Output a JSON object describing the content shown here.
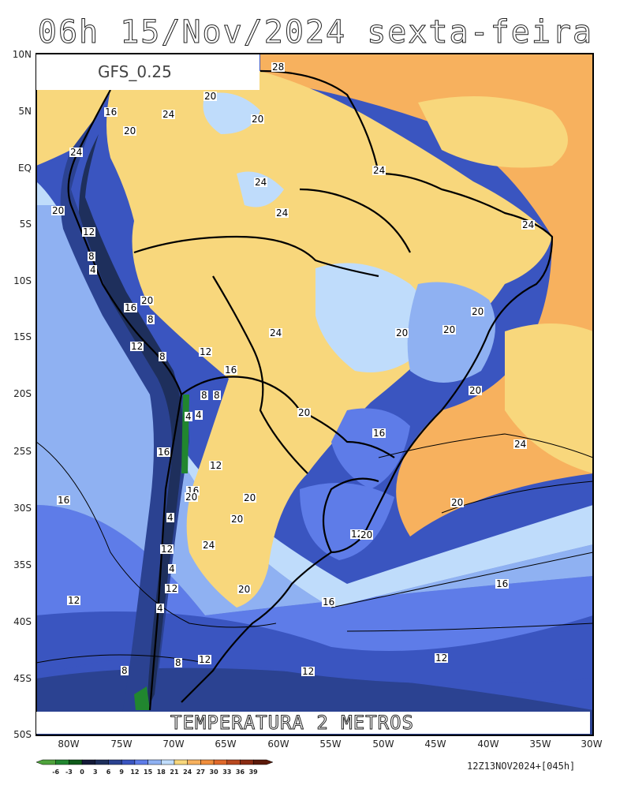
{
  "title": "06h 15/Nov/2024 sexta-feira",
  "model": "GFS_0.25",
  "variable": "TEMPERATURA 2 METROS",
  "run_info": "12Z13NOV2024+[045h]",
  "lat_labels": [
    "10N",
    "5N",
    "EQ",
    "5S",
    "10S",
    "15S",
    "20S",
    "25S",
    "30S",
    "35S",
    "40S",
    "45S",
    "50S"
  ],
  "lon_labels": [
    "80W",
    "75W",
    "70W",
    "65W",
    "60W",
    "55W",
    "50W",
    "45W",
    "40W",
    "35W",
    "30W"
  ],
  "legend": {
    "ticks": [
      "-6",
      "-3",
      "0",
      "3",
      "6",
      "9",
      "12",
      "15",
      "18",
      "21",
      "24",
      "27",
      "30",
      "33",
      "36",
      "39"
    ],
    "colors": [
      "#4fa33c",
      "#21862f",
      "#0f5a1a",
      "#141a38",
      "#1e2f5c",
      "#2b4291",
      "#3a55c0",
      "#5e7ce8",
      "#8fb1f2",
      "#bfdcfb",
      "#f8d77c",
      "#f7b15e",
      "#f08e3c",
      "#e0692a",
      "#b8481f",
      "#8a2b12",
      "#5c1a0a"
    ]
  },
  "contour_labels": [
    "28",
    "20",
    "16",
    "20",
    "24",
    "20",
    "24",
    "24",
    "20",
    "24",
    "24",
    "12",
    "8",
    "4",
    "24",
    "16",
    "20",
    "8",
    "20",
    "12",
    "8",
    "12",
    "24",
    "20",
    "16",
    "20",
    "8",
    "8",
    "20",
    "4",
    "4",
    "20",
    "16",
    "16",
    "24",
    "12",
    "16",
    "20",
    "20",
    "16",
    "20",
    "4",
    "20",
    "12",
    "20",
    "24",
    "12",
    "4",
    "12",
    "20",
    "12",
    "4",
    "16",
    "16",
    "12",
    "8",
    "12",
    "8",
    "12"
  ]
}
